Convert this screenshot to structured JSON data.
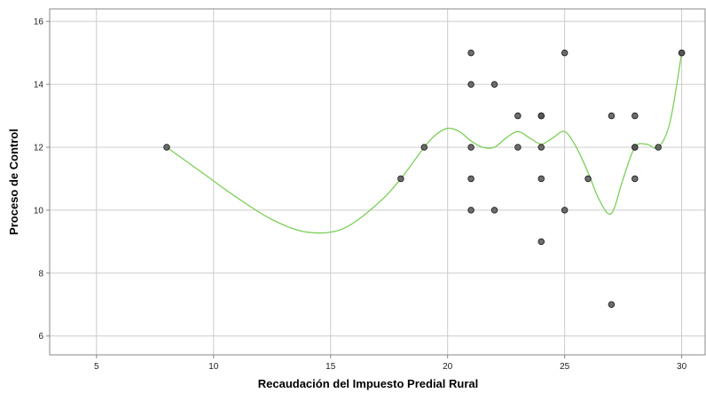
{
  "chart_data": {
    "type": "scatter",
    "title": "",
    "xlabel": "Recaudación del Impuesto Predial Rural",
    "ylabel": "Proceso de Control",
    "xlim": [
      3,
      31
    ],
    "ylim": [
      5.4,
      16.4
    ],
    "x_ticks": [
      5,
      10,
      15,
      20,
      25,
      30
    ],
    "y_ticks": [
      6,
      8,
      10,
      12,
      14,
      16
    ],
    "grid": true,
    "colors": {
      "points": "#555555",
      "point_edge": "#222222",
      "fit_line": "#7ccf5a",
      "grid": "#cccccc",
      "frame": "#888888"
    },
    "points": [
      {
        "x": 8,
        "y": 12
      },
      {
        "x": 18,
        "y": 11
      },
      {
        "x": 19,
        "y": 12
      },
      {
        "x": 21,
        "y": 15
      },
      {
        "x": 21,
        "y": 14
      },
      {
        "x": 21,
        "y": 12
      },
      {
        "x": 21,
        "y": 11
      },
      {
        "x": 21,
        "y": 10
      },
      {
        "x": 22,
        "y": 14
      },
      {
        "x": 22,
        "y": 10
      },
      {
        "x": 23,
        "y": 13
      },
      {
        "x": 23,
        "y": 12
      },
      {
        "x": 24,
        "y": 13
      },
      {
        "x": 24,
        "y": 13
      },
      {
        "x": 24,
        "y": 12
      },
      {
        "x": 24,
        "y": 11
      },
      {
        "x": 24,
        "y": 9
      },
      {
        "x": 25,
        "y": 15
      },
      {
        "x": 25,
        "y": 10
      },
      {
        "x": 26,
        "y": 11
      },
      {
        "x": 27,
        "y": 13
      },
      {
        "x": 27,
        "y": 7
      },
      {
        "x": 28,
        "y": 13
      },
      {
        "x": 28,
        "y": 12
      },
      {
        "x": 28,
        "y": 12
      },
      {
        "x": 28,
        "y": 11
      },
      {
        "x": 29,
        "y": 12
      },
      {
        "x": 30,
        "y": 15
      },
      {
        "x": 30,
        "y": 15
      }
    ],
    "fit_line": {
      "method": "smoothed curve",
      "x": [
        8,
        9.5,
        11,
        12.5,
        14,
        15.5,
        17,
        18,
        19,
        19.5,
        20,
        20.5,
        21,
        21.5,
        22,
        22.5,
        23,
        23.5,
        24,
        24.5,
        25,
        25.5,
        26,
        26.5,
        27,
        27.5,
        28,
        28.5,
        29,
        29.5,
        30
      ],
      "y": [
        12,
        11.2,
        10.4,
        9.7,
        9.3,
        9.4,
        10.2,
        11,
        12,
        12.4,
        12.6,
        12.5,
        12.2,
        12.0,
        12.0,
        12.3,
        12.5,
        12.3,
        12.1,
        12.3,
        12.5,
        12.0,
        11.2,
        10.3,
        9.9,
        11.0,
        12.0,
        12.1,
        12.0,
        12.8,
        15
      ]
    }
  }
}
